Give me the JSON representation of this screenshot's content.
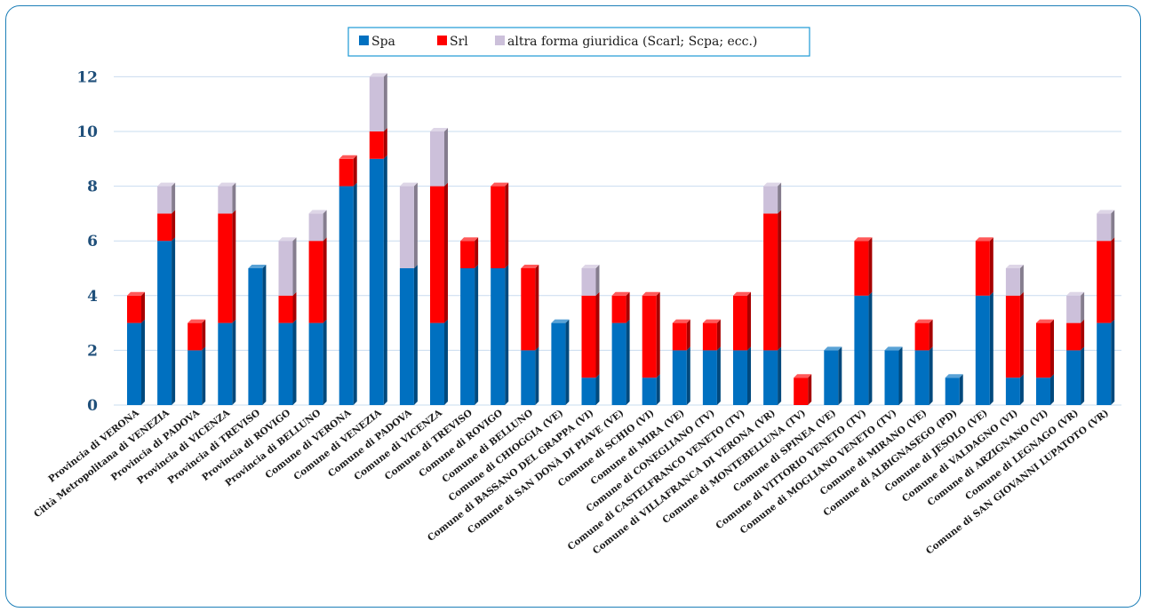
{
  "chart_data": {
    "type": "bar",
    "stacked": true,
    "title": "",
    "xlabel": "",
    "ylabel": "",
    "ylim": [
      0,
      12
    ],
    "yticks": [
      0,
      2,
      4,
      6,
      8,
      10,
      12
    ],
    "grid": true,
    "legend_position": "top-center",
    "categories": [
      "Provincia di VERONA",
      "Città Metropolitana di VENEZIA",
      "Provincia di PADOVA",
      "Provincia di VICENZA",
      "Provincia di TREVISO",
      "Provincia di ROVIGO",
      "Provincia di BELLUNO",
      "Comune di VERONA",
      "Comune di VENEZIA",
      "Comune di PADOVA",
      "Comune di VICENZA",
      "Comune di TREVISO",
      "Comune di ROVIGO",
      "Comune di BELLUNO",
      "Comune di CHIOGGIA (VE)",
      "Comune di BASSANO DEL GRAPPA (VI)",
      "Comune di SAN DONÀ DI PIAVE (VE)",
      "Comune di SCHIO (VI)",
      "Comune di MIRA (VE)",
      "Comune di CONEGLIANO (TV)",
      "Comune di CASTELFRANCO VENETO (TV)",
      "Comune di VILLAFRANCA DI VERONA (VR)",
      "Comune di MONTEBELLUNA (TV)",
      "Comune di SPINEA (VE)",
      "Comune di VITTORIO VENETO (TV)",
      "Comune di MOGLIANO VENETO (TV)",
      "Comune di MIRANO (VE)",
      "Comune di ALBIGNASEGO (PD)",
      "Comune di JESOLO (VE)",
      "Comune di VALDAGNO (VI)",
      "Comune di ARZIGNANO (VI)",
      "Comune di LEGNAGO (VR)",
      "Comune di SAN GIOVANNI LUPATOTO (VR)"
    ],
    "series": [
      {
        "name": "Spa",
        "color": "#0070c0",
        "values": [
          3,
          6,
          2,
          3,
          5,
          3,
          3,
          8,
          9,
          5,
          3,
          5,
          5,
          2,
          3,
          1,
          3,
          1,
          2,
          2,
          2,
          2,
          0,
          2,
          4,
          2,
          2,
          1,
          4,
          1,
          1,
          2,
          3
        ]
      },
      {
        "name": "Srl",
        "color": "#ff0000",
        "values": [
          1,
          1,
          1,
          4,
          0,
          1,
          3,
          1,
          1,
          0,
          5,
          1,
          3,
          3,
          0,
          3,
          1,
          3,
          1,
          1,
          2,
          5,
          1,
          0,
          2,
          0,
          1,
          0,
          2,
          3,
          2,
          1,
          3
        ]
      },
      {
        "name": "altra forma giuridica (Scarl; Scpa; ecc.)",
        "color": "#ccc0da",
        "values": [
          0,
          1,
          0,
          1,
          0,
          2,
          1,
          0,
          2,
          3,
          2,
          0,
          0,
          0,
          0,
          1,
          0,
          0,
          0,
          0,
          0,
          1,
          0,
          0,
          0,
          0,
          0,
          0,
          0,
          1,
          0,
          1,
          1
        ]
      }
    ]
  }
}
